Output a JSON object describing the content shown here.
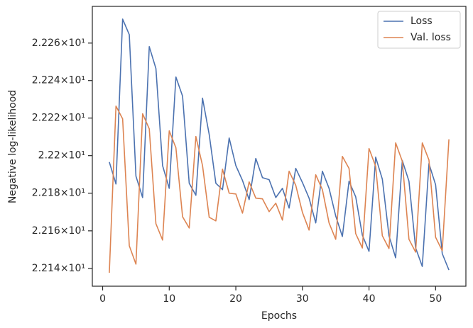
{
  "chart_data": {
    "type": "line",
    "x_label": "Epochs",
    "y_label": "Negative log-likelihood",
    "x": [
      1,
      2,
      3,
      4,
      5,
      6,
      7,
      8,
      9,
      10,
      11,
      12,
      13,
      14,
      15,
      16,
      17,
      18,
      19,
      20,
      21,
      22,
      23,
      24,
      25,
      26,
      27,
      28,
      29,
      30,
      31,
      32,
      33,
      34,
      35,
      36,
      37,
      38,
      39,
      40,
      41,
      42,
      43,
      44,
      45,
      46,
      47,
      48,
      49,
      50,
      51,
      52
    ],
    "series": [
      {
        "name": "Loss",
        "color": "#4c72b0",
        "values": [
          22.1966,
          22.1849,
          22.2728,
          22.2645,
          22.1891,
          22.1777,
          22.2581,
          22.2464,
          22.1947,
          22.1826,
          22.2419,
          22.2317,
          22.1853,
          22.1789,
          22.2306,
          22.2113,
          22.1853,
          22.1819,
          22.2094,
          22.1947,
          22.1868,
          22.1766,
          22.1985,
          22.1883,
          22.1872,
          22.1777,
          22.1826,
          22.1721,
          22.1932,
          22.1857,
          22.1774,
          22.1642,
          22.1917,
          22.1826,
          22.1679,
          22.157,
          22.1864,
          22.1781,
          22.1577,
          22.1491,
          22.1992,
          22.1875,
          22.1574,
          22.1457,
          22.1974,
          22.1864,
          22.1509,
          22.1411,
          22.1958,
          22.1845,
          22.1479,
          22.1392
        ]
      },
      {
        "name": "Val. loss",
        "color": "#dd8452",
        "values": [
          22.1377,
          22.2264,
          22.2196,
          22.1521,
          22.1423,
          22.2223,
          22.2143,
          22.1638,
          22.1551,
          22.2132,
          22.2042,
          22.1675,
          22.1615,
          22.2102,
          22.1947,
          22.1672,
          22.1653,
          22.1928,
          22.18,
          22.1796,
          22.1694,
          22.186,
          22.1774,
          22.177,
          22.1702,
          22.1747,
          22.1657,
          22.1917,
          22.1842,
          22.1698,
          22.1604,
          22.1898,
          22.1819,
          22.1642,
          22.1555,
          22.1996,
          22.1932,
          22.1585,
          22.1509,
          22.2038,
          22.1943,
          22.1574,
          22.1506,
          22.2068,
          22.197,
          22.1555,
          22.1487,
          22.2068,
          22.1977,
          22.1566,
          22.1494,
          22.2087
        ]
      }
    ],
    "xlim": [
      -1.55,
      54.55
    ],
    "xticks": [
      0,
      10,
      20,
      30,
      40,
      50
    ],
    "ylim": [
      22.1306,
      22.2796
    ],
    "y_log_scale": true,
    "yticks": [
      {
        "value": 22.14,
        "label": "2.214×10¹"
      },
      {
        "value": 22.16,
        "label": "2.216×10¹"
      },
      {
        "value": 22.18,
        "label": "2.218×10¹"
      },
      {
        "value": 22.2,
        "label": "2.22×10¹"
      },
      {
        "value": 22.22,
        "label": "2.222×10¹"
      },
      {
        "value": 22.24,
        "label": "2.224×10¹"
      },
      {
        "value": 22.26,
        "label": "2.226×10¹"
      }
    ],
    "grid": false,
    "legend_position": "upper right"
  }
}
